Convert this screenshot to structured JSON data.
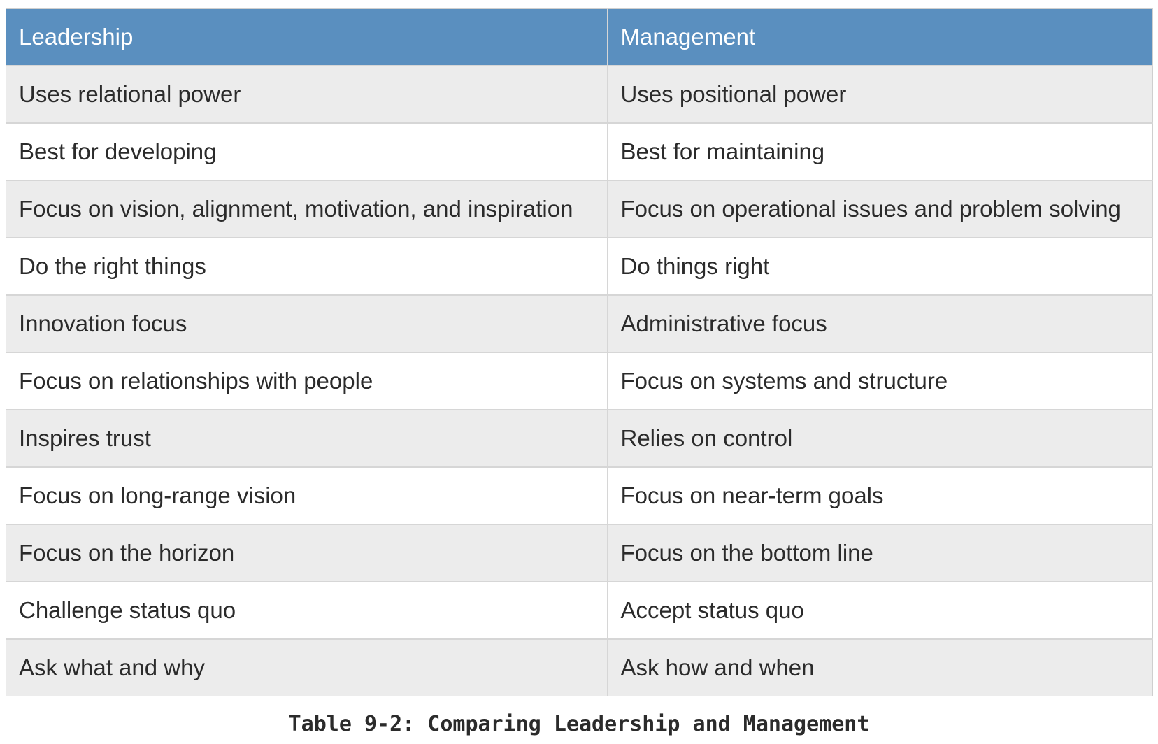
{
  "table": {
    "headers": [
      "Leadership",
      "Management"
    ],
    "rows": [
      [
        "Uses relational power",
        "Uses positional power"
      ],
      [
        "Best for developing",
        "Best for maintaining"
      ],
      [
        "Focus on vision, alignment, motivation, and inspiration",
        "Focus on operational issues and problem solving"
      ],
      [
        "Do the right things",
        "Do things right"
      ],
      [
        "Innovation focus",
        "Administrative focus"
      ],
      [
        "Focus on relationships with people",
        "Focus on systems and structure"
      ],
      [
        "Inspires trust",
        "Relies on control"
      ],
      [
        "Focus on long-range vision",
        "Focus on near-term goals"
      ],
      [
        "Focus on the horizon",
        "Focus on the bottom line"
      ],
      [
        "Challenge status quo",
        "Accept status quo"
      ],
      [
        "Ask what and why",
        "Ask how and when"
      ]
    ]
  },
  "caption": "Table 9-2: Comparing Leadership and Management",
  "colors": {
    "header_bg": "#5a8fbf",
    "header_text": "#ffffff",
    "row_alt_bg": "#ececec",
    "border": "#d6d6d6"
  }
}
